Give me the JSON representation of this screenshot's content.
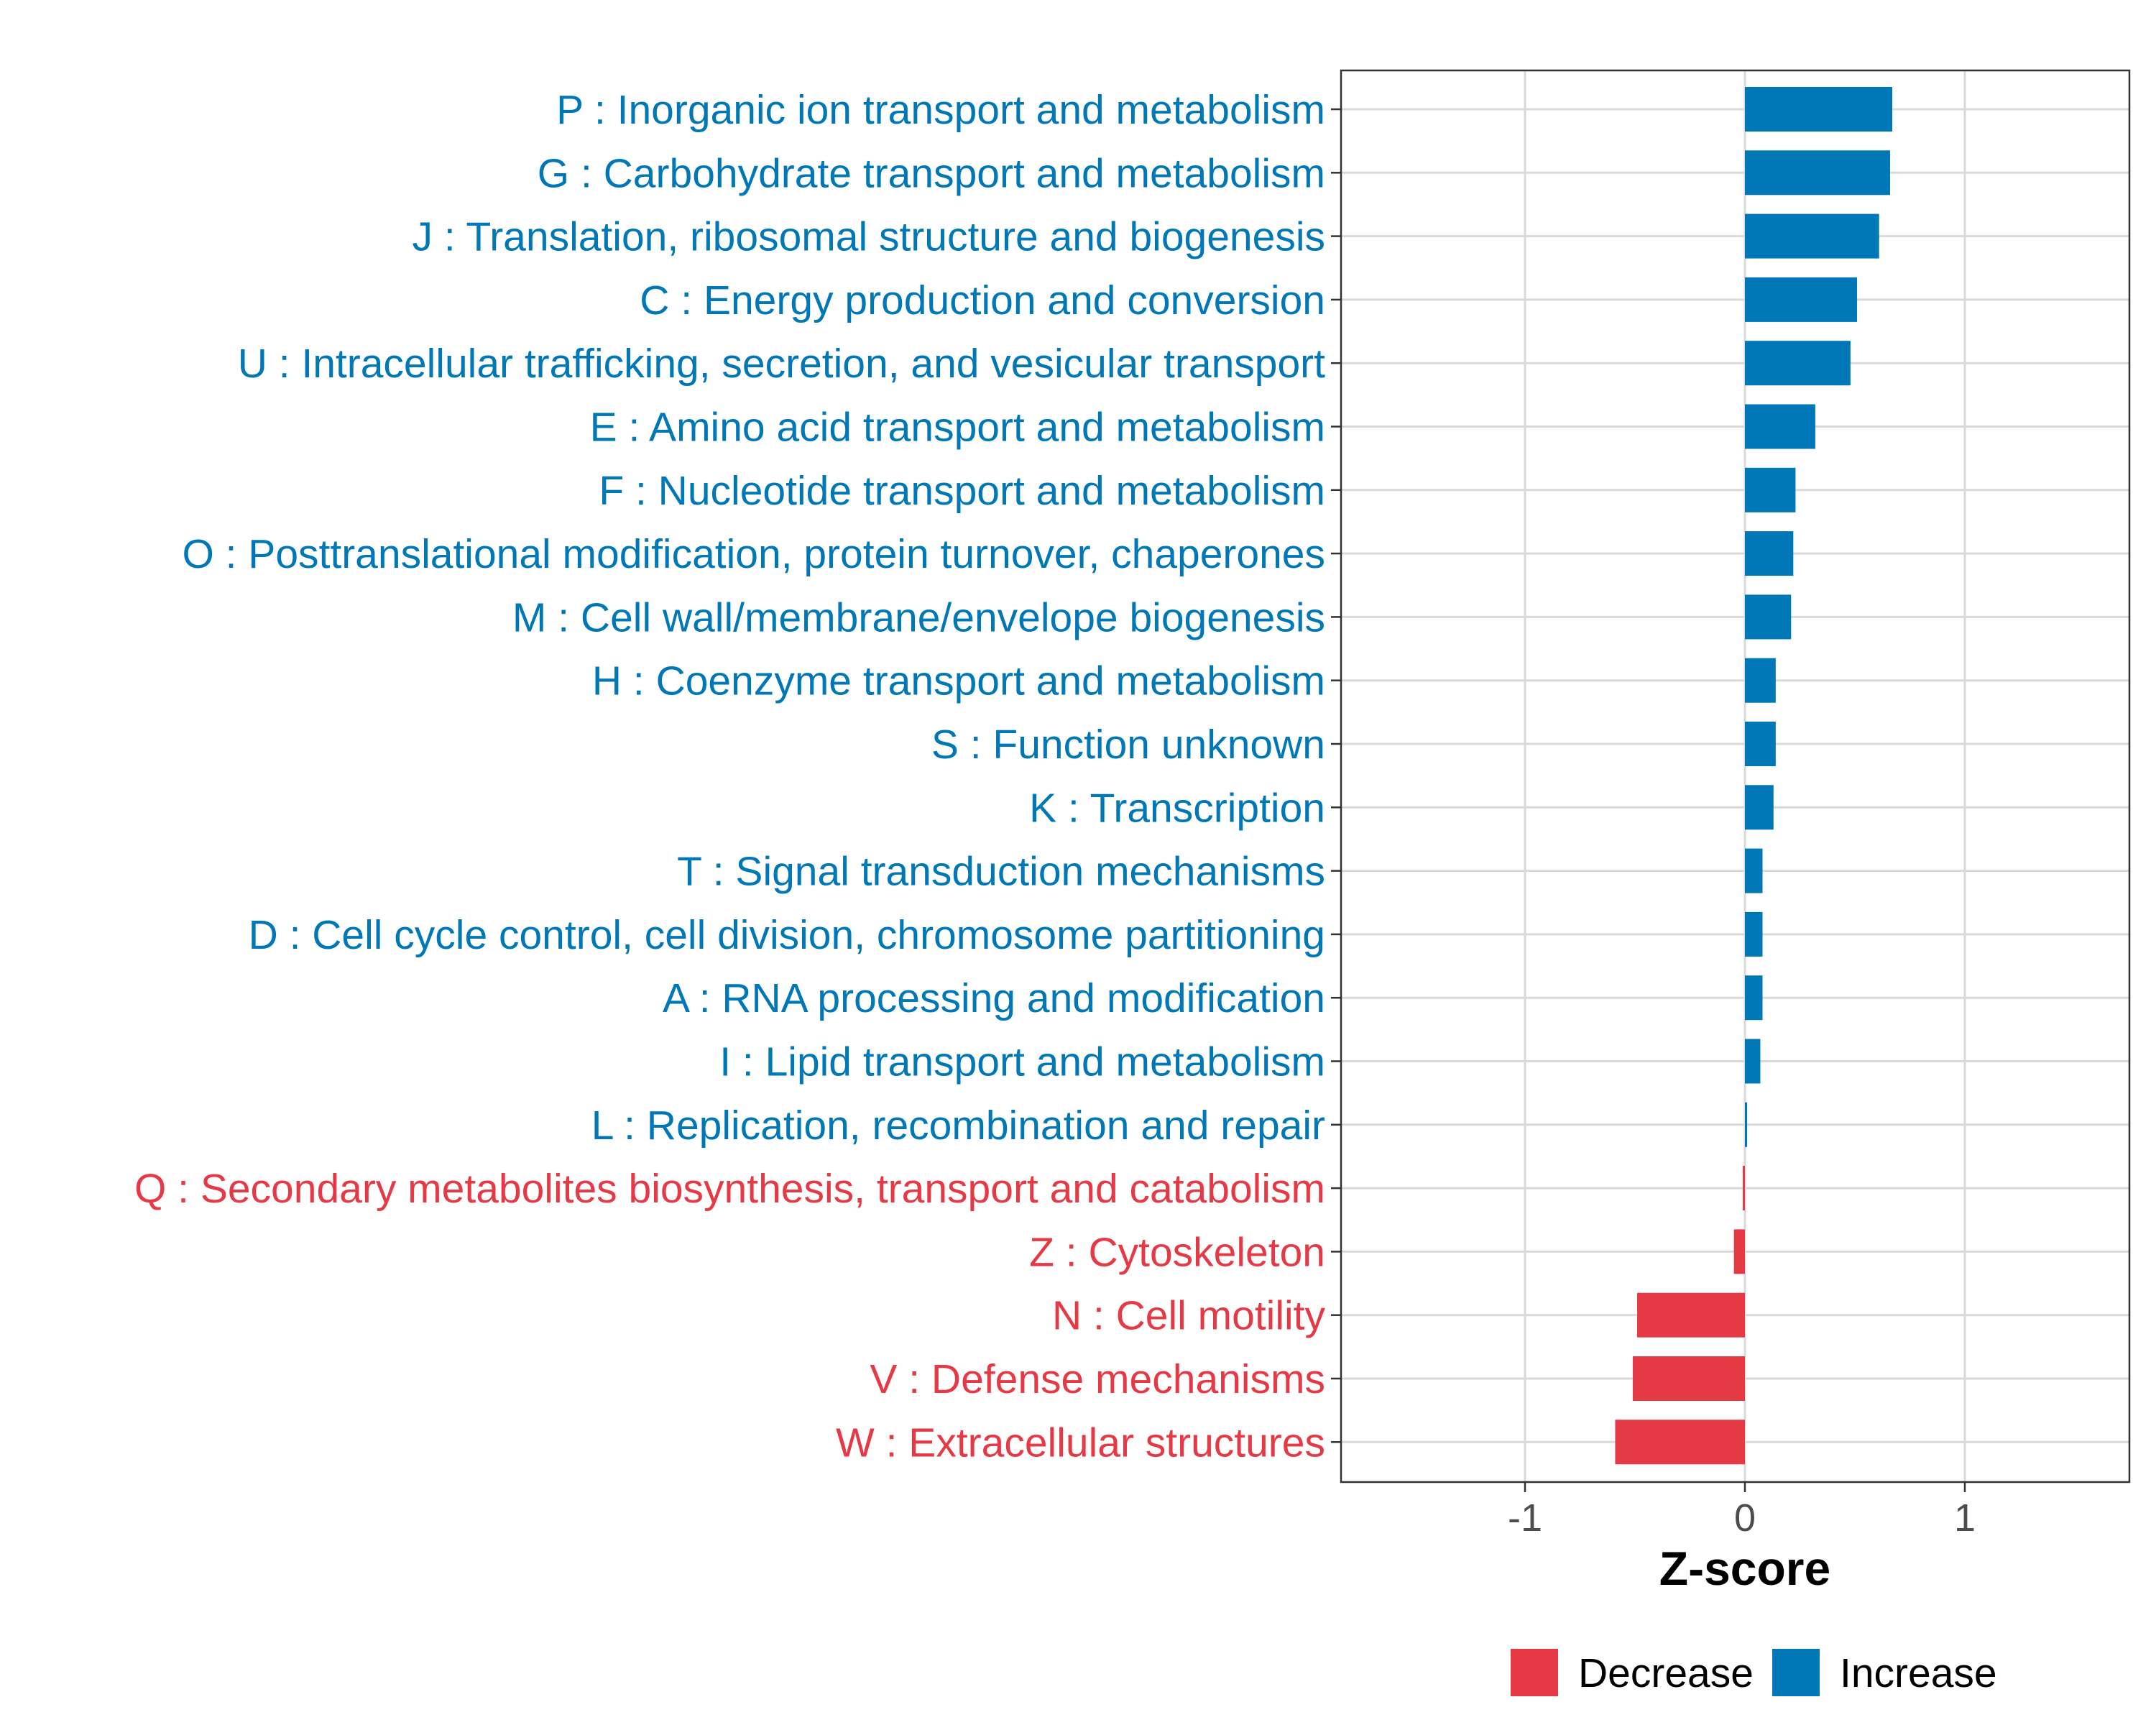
{
  "chart_data": {
    "type": "bar",
    "orientation": "horizontal",
    "title": "",
    "xlabel": "Z-score",
    "ylabel": "",
    "xlim": [
      -1.83,
      1.83
    ],
    "xticks": [
      -1,
      0,
      1
    ],
    "xtick_labels": [
      "-1",
      "0",
      "1"
    ],
    "grid": true,
    "legend_position": "bottom",
    "colors": {
      "Decrease": "#E63946",
      "Increase": "#0077B6"
    },
    "legend": [
      {
        "name": "Decrease",
        "color": "#E63946"
      },
      {
        "name": "Increase",
        "color": "#0077B6"
      }
    ],
    "categories": [
      "P : Inorganic ion transport and metabolism",
      "G : Carbohydrate transport and metabolism",
      "J : Translation, ribosomal structure and biogenesis",
      "C : Energy production and conversion",
      "U : Intracellular trafficking, secretion, and vesicular transport",
      "E : Amino acid transport and metabolism",
      "F : Nucleotide transport and metabolism",
      "O : Posttranslational modification, protein turnover, chaperones",
      "M : Cell wall/membrane/envelope biogenesis",
      "H : Coenzyme transport and metabolism",
      "S : Function unknown",
      "K : Transcription",
      "T : Signal transduction mechanisms",
      "D : Cell cycle control, cell division, chromosome partitioning",
      "A : RNA processing and modification",
      "I : Lipid transport and metabolism",
      "L : Replication, recombination and repair",
      "Q : Secondary metabolites biosynthesis, transport and catabolism",
      "Z : Cytoskeleton",
      "N : Cell motility",
      "V : Defense mechanisms",
      "W : Extracellular structures"
    ],
    "values": [
      0.67,
      0.66,
      0.61,
      0.51,
      0.48,
      0.32,
      0.23,
      0.22,
      0.21,
      0.14,
      0.14,
      0.13,
      0.08,
      0.08,
      0.08,
      0.07,
      0.01,
      -0.01,
      -0.05,
      -0.49,
      -0.51,
      -0.59
    ],
    "groups": [
      "Increase",
      "Increase",
      "Increase",
      "Increase",
      "Increase",
      "Increase",
      "Increase",
      "Increase",
      "Increase",
      "Increase",
      "Increase",
      "Increase",
      "Increase",
      "Increase",
      "Increase",
      "Increase",
      "Increase",
      "Decrease",
      "Decrease",
      "Decrease",
      "Decrease",
      "Decrease"
    ]
  }
}
